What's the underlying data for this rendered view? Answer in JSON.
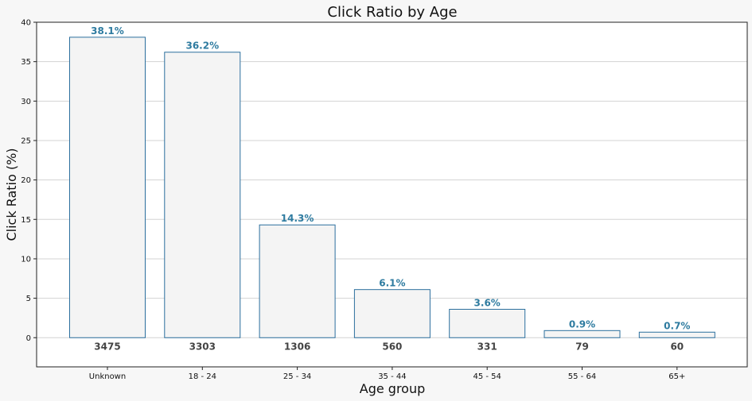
{
  "chart_data": {
    "type": "bar",
    "title": "Click Ratio by Age",
    "xlabel": "Age group",
    "ylabel": "Click Ratio (%)",
    "categories": [
      "Unknown",
      "18 - 24",
      "25 - 34",
      "35 - 44",
      "45 - 54",
      "55 - 64",
      "65+"
    ],
    "values": [
      38.1,
      36.2,
      14.3,
      6.1,
      3.6,
      0.9,
      0.7
    ],
    "value_labels": [
      "38.1%",
      "36.2%",
      "14.3%",
      "6.1%",
      "3.6%",
      "0.9%",
      "0.7%"
    ],
    "counts": [
      "3475",
      "3303",
      "1306",
      "560",
      "331",
      "79",
      "60"
    ],
    "ylim": [
      -3.7,
      40
    ],
    "yticks": [
      0,
      5,
      10,
      15,
      20,
      25,
      30,
      35,
      40
    ],
    "grid": "horizontal",
    "colors": {
      "bar_fill": "#f4f4f4",
      "bar_edge": "#2b6f9e",
      "value_label": "#2e7ba0",
      "count_label": "#444444",
      "grid": "#d3d3d3",
      "plot_bg": "#ffffff",
      "figure_bg": "#f7f7f7"
    }
  }
}
